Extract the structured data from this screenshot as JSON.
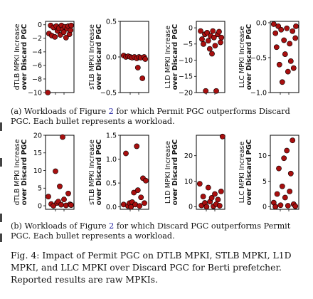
{
  "charts": [
    {
      "id": "a1",
      "row": 0,
      "type": "scatter",
      "ylabel": [
        "dTLB MPKI Increase",
        "over Discard PGC"
      ],
      "ylim": [
        -10,
        0.5
      ],
      "yticks": [
        0,
        -2,
        -4,
        -6,
        -8,
        -10
      ],
      "ytick_labels": [
        "0",
        "−2",
        "−4",
        "−6",
        "−8",
        "−10"
      ],
      "points": [
        [
          0.08,
          -10
        ],
        [
          0.12,
          -1.3
        ],
        [
          0.18,
          -0.1
        ],
        [
          0.22,
          -1.6
        ],
        [
          0.28,
          -0.4
        ],
        [
          0.33,
          -1.8
        ],
        [
          0.38,
          -0.2
        ],
        [
          0.42,
          -0.9
        ],
        [
          0.47,
          -0.5
        ],
        [
          0.52,
          -1.5
        ],
        [
          0.56,
          -0.1
        ],
        [
          0.6,
          -0.7
        ],
        [
          0.64,
          -1.1
        ],
        [
          0.68,
          -0.3
        ],
        [
          0.72,
          -1.9
        ],
        [
          0.76,
          -0.6
        ],
        [
          0.8,
          -0.2
        ],
        [
          0.84,
          -1.4
        ],
        [
          0.88,
          -0.8
        ],
        [
          0.9,
          -0.1
        ]
      ]
    },
    {
      "id": "a2",
      "row": 0,
      "type": "scatter",
      "ylabel": [
        "sTLB MPKI Increase",
        "over Discard PGC"
      ],
      "ylim": [
        -0.5,
        0.5
      ],
      "yticks": [
        0.5,
        0,
        -0.5
      ],
      "ytick_labels": [
        "0.5",
        "0.0",
        "−0.5"
      ],
      "points": [
        [
          0.12,
          0.02
        ],
        [
          0.2,
          0.0
        ],
        [
          0.28,
          0.01
        ],
        [
          0.35,
          0.0
        ],
        [
          0.42,
          -0.01
        ],
        [
          0.5,
          0.0
        ],
        [
          0.58,
          -0.02
        ],
        [
          0.62,
          -0.15
        ],
        [
          0.66,
          0.0
        ],
        [
          0.72,
          -0.01
        ],
        [
          0.78,
          -0.3
        ],
        [
          0.84,
          0.0
        ],
        [
          0.88,
          -0.03
        ]
      ]
    },
    {
      "id": "a3",
      "row": 0,
      "type": "scatter",
      "ylabel": [
        "L1D MPKI Increase",
        "over Discard PGC"
      ],
      "ylim": [
        -20,
        2
      ],
      "yticks": [
        0,
        -5,
        -10,
        -15,
        -20
      ],
      "ytick_labels": [
        "0",
        "−5",
        "−10",
        "−15",
        "−20"
      ],
      "points": [
        [
          0.15,
          -1
        ],
        [
          0.2,
          -3.5
        ],
        [
          0.25,
          -5
        ],
        [
          0.3,
          -2
        ],
        [
          0.33,
          -19.5
        ],
        [
          0.38,
          -1.5
        ],
        [
          0.42,
          -4
        ],
        [
          0.47,
          -6.5
        ],
        [
          0.5,
          -2.5
        ],
        [
          0.55,
          -8
        ],
        [
          0.58,
          -1
        ],
        [
          0.62,
          -3
        ],
        [
          0.66,
          -5.5
        ],
        [
          0.7,
          -19.5
        ],
        [
          0.75,
          -2
        ],
        [
          0.8,
          -1.2
        ],
        [
          0.85,
          -4.5
        ],
        [
          0.88,
          -3
        ]
      ]
    },
    {
      "id": "a4",
      "row": 0,
      "type": "scatter",
      "ylabel": [
        "LLC MPKI Increase",
        "over Discard PGC"
      ],
      "ylim": [
        -1,
        0.02
      ],
      "yticks": [
        0,
        -0.5,
        -1
      ],
      "ytick_labels": [
        "0.0",
        "−0.5",
        "−1.0"
      ],
      "points": [
        [
          0.12,
          -0.02
        ],
        [
          0.18,
          -0.15
        ],
        [
          0.22,
          -0.35
        ],
        [
          0.28,
          -0.05
        ],
        [
          0.32,
          -0.6
        ],
        [
          0.38,
          -0.1
        ],
        [
          0.42,
          -0.85
        ],
        [
          0.48,
          -0.25
        ],
        [
          0.52,
          -0.45
        ],
        [
          0.58,
          -0.08
        ],
        [
          0.62,
          -0.7
        ],
        [
          0.68,
          -0.3
        ],
        [
          0.72,
          -0.55
        ],
        [
          0.78,
          -0.12
        ],
        [
          0.82,
          -0.65
        ],
        [
          0.88,
          -0.22
        ],
        [
          0.9,
          -0.05
        ]
      ]
    },
    {
      "id": "b1",
      "row": 1,
      "type": "scatter",
      "ylabel": [
        "dTLB MPKI Increase",
        "over Discard PGC"
      ],
      "ylim": [
        -1,
        20
      ],
      "yticks": [
        0,
        5,
        10,
        15,
        20
      ],
      "ytick_labels": [
        "0",
        "5",
        "10",
        "15",
        "20"
      ],
      "points": [
        [
          0.1,
          2.6
        ],
        [
          0.2,
          0.5
        ],
        [
          0.28,
          0
        ],
        [
          0.35,
          9.8
        ],
        [
          0.4,
          0.8
        ],
        [
          0.45,
          1.2
        ],
        [
          0.5,
          5.5
        ],
        [
          0.55,
          0.3
        ],
        [
          0.6,
          19.5
        ],
        [
          0.65,
          1.8
        ],
        [
          0.72,
          0.1
        ],
        [
          0.8,
          3.5
        ],
        [
          0.86,
          0.4
        ],
        [
          0.9,
          0.2
        ]
      ]
    },
    {
      "id": "b2",
      "row": 1,
      "type": "scatter",
      "ylabel": [
        "sTLB MPKI Increase",
        "over Discard PGC"
      ],
      "ylim": [
        -0.05,
        1.5
      ],
      "yticks": [
        0,
        0.5,
        1.0,
        1.5
      ],
      "ytick_labels": [
        "0.0",
        "0.5",
        "1.0",
        "1.5"
      ],
      "points": [
        [
          0.12,
          0.05
        ],
        [
          0.2,
          1.12
        ],
        [
          0.27,
          0.02
        ],
        [
          0.33,
          0.08
        ],
        [
          0.38,
          0.0
        ],
        [
          0.42,
          0.1
        ],
        [
          0.48,
          0.3
        ],
        [
          0.53,
          0.05
        ],
        [
          0.58,
          1.27
        ],
        [
          0.62,
          0.35
        ],
        [
          0.68,
          0.02
        ],
        [
          0.73,
          0.2
        ],
        [
          0.8,
          0.6
        ],
        [
          0.85,
          0.08
        ],
        [
          0.9,
          0.55
        ]
      ]
    },
    {
      "id": "b3",
      "row": 1,
      "type": "scatter",
      "ylabel": [
        "L1D MPKI Increase",
        "over Discard PGC"
      ],
      "ylim": [
        -1,
        28
      ],
      "yticks": [
        0,
        10,
        20
      ],
      "ytick_labels": [
        "0",
        "10",
        "20"
      ],
      "points": [
        [
          0.12,
          9
        ],
        [
          0.18,
          0.5
        ],
        [
          0.24,
          4
        ],
        [
          0.3,
          1.5
        ],
        [
          0.36,
          0
        ],
        [
          0.42,
          7.5
        ],
        [
          0.48,
          2
        ],
        [
          0.54,
          3.5
        ],
        [
          0.6,
          0.2
        ],
        [
          0.65,
          5
        ],
        [
          0.7,
          1
        ],
        [
          0.76,
          2.8
        ],
        [
          0.82,
          0.4
        ],
        [
          0.87,
          6
        ],
        [
          0.92,
          27.5
        ]
      ]
    },
    {
      "id": "b4",
      "row": 1,
      "type": "scatter",
      "ylabel": [
        "LLC MPKI Increase",
        "over Discard PGC"
      ],
      "ylim": [
        -0.5,
        14
      ],
      "yticks": [
        0,
        5,
        10
      ],
      "ytick_labels": [
        "0",
        "5",
        "10"
      ],
      "points": [
        [
          0.12,
          0.8
        ],
        [
          0.18,
          0
        ],
        [
          0.24,
          2.5
        ],
        [
          0.3,
          7.5
        ],
        [
          0.36,
          0.3
        ],
        [
          0.42,
          4
        ],
        [
          0.48,
          9.5
        ],
        [
          0.52,
          1.8
        ],
        [
          0.58,
          11
        ],
        [
          0.62,
          0.2
        ],
        [
          0.68,
          3
        ],
        [
          0.72,
          6.5
        ],
        [
          0.78,
          13
        ],
        [
          0.82,
          0.5
        ],
        [
          0.88,
          0.1
        ]
      ]
    }
  ],
  "caption_a": {
    "prefix": "(a) Workloads of Figure ",
    "ref": "2",
    "suffix": " for which Permit PGC outperforms Discard PGC. Each bullet represents a workload."
  },
  "caption_b": {
    "prefix": "(b) Workloads of Figure ",
    "ref": "2",
    "suffix": " for which Discard PGC outperforms Permit PGC. Each bullet represents a workload."
  },
  "figure_caption": "Fig. 4: Impact of Permit PGC on DTLB MPKI, STLB MPKI, L1D MPKI, and LLC MPKI over Discard PGC for Berti prefetcher. Reported results are raw MPKIs.",
  "colors": {
    "marker_fill": "#a80f0f",
    "marker_edge": "#000000",
    "axis": "#000000"
  }
}
